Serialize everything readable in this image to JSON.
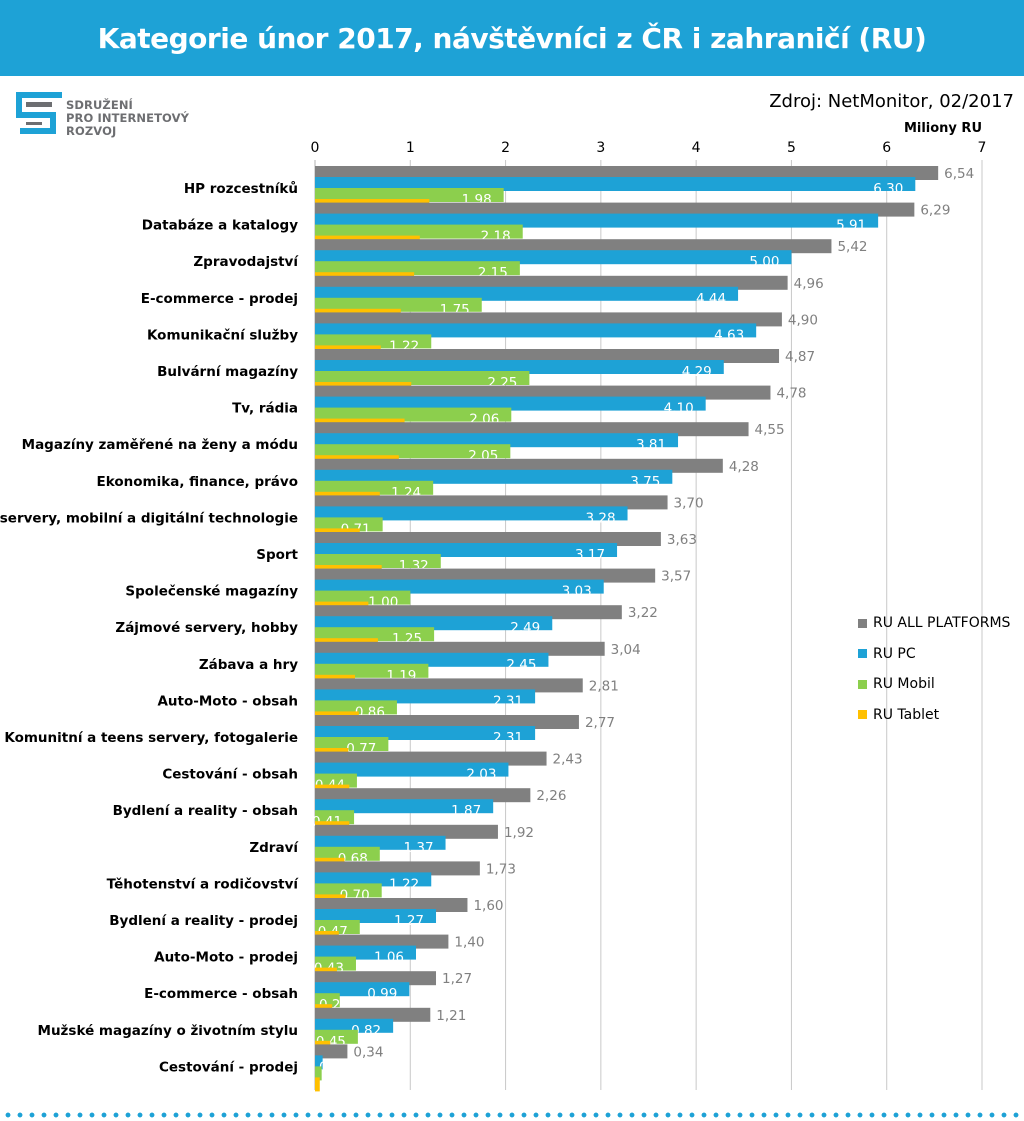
{
  "header": {
    "title": "Kategorie únor 2017, návštěvníci z ČR i zahraničí (RU)"
  },
  "logo": {
    "line1": "SDRUŽENÍ",
    "line2": "PRO INTERNETOVÝ",
    "line3": "ROZVOJ",
    "color": "#1ea2d6"
  },
  "source": "Zdroj: NetMonitor, 02/2017",
  "colors": {
    "all": "#808080",
    "pc": "#1ea2d6",
    "mobil": "#8ccf4d",
    "tablet": "#ffc000",
    "header": "#1ea2d6"
  },
  "chart_data": {
    "type": "bar",
    "orientation": "horizontal",
    "title": "Kategorie únor 2017, návštěvníci z ČR i zahraničí (RU)",
    "xlabel": "Miliony RU",
    "xlim": [
      0,
      7
    ],
    "ticks": [
      "0",
      "1",
      "2",
      "3",
      "4",
      "5",
      "6",
      "7"
    ],
    "legend_position": "right",
    "categories": [
      "HP rozcestníků",
      "Databáze a katalogy",
      "Zpravodajství",
      "E-commerce - prodej",
      "Komunikační služby",
      "Bulvární magazíny",
      "Tv, rádia",
      "Magazíny zaměřené na ženy a módu",
      "Ekonomika, finance, právo",
      "IT servery, mobilní a digitální technologie",
      "Sport",
      "Společenské magazíny",
      "Zájmové servery, hobby",
      "Zábava a hry",
      "Auto-Moto - obsah",
      "Komunitní a teens servery, fotogalerie",
      "Cestování - obsah",
      "Bydlení a reality - obsah",
      "Zdraví",
      "Těhotenství a rodičovství",
      "Bydlení a reality - prodej",
      "Auto-Moto - prodej",
      "E-commerce - obsah",
      "Mužské magazíny o životním stylu",
      "Cestování - prodej"
    ],
    "series": [
      {
        "name": "RU ALL PLATFORMS",
        "values": [
          6.54,
          6.29,
          5.42,
          4.96,
          4.9,
          4.87,
          4.78,
          4.55,
          4.28,
          3.7,
          3.63,
          3.57,
          3.22,
          3.04,
          2.81,
          2.77,
          2.43,
          2.26,
          1.92,
          1.73,
          1.6,
          1.4,
          1.27,
          1.21,
          0.34
        ],
        "labels": [
          "6,54",
          "6,29",
          "5,42",
          "4,96",
          "4,90",
          "4,87",
          "4,78",
          "4,55",
          "4,28",
          "3,70",
          "3,63",
          "3,57",
          "3,22",
          "3,04",
          "2,81",
          "2,77",
          "2,43",
          "2,26",
          "1,92",
          "1,73",
          "1,60",
          "1,40",
          "1,27",
          "1,21",
          "0,34"
        ]
      },
      {
        "name": "RU PC",
        "values": [
          6.3,
          5.91,
          5.0,
          4.44,
          4.63,
          4.29,
          4.1,
          3.81,
          3.75,
          3.28,
          3.17,
          3.03,
          2.49,
          2.45,
          2.31,
          2.31,
          2.03,
          1.87,
          1.37,
          1.22,
          1.27,
          1.06,
          0.99,
          0.82,
          0.08
        ],
        "labels": [
          "6,30",
          "5,91",
          "5,00",
          "4,44",
          "4,63",
          "4,29",
          "4,10",
          "3,81",
          "3,75",
          "3,28",
          "3,17",
          "3,03",
          "2,49",
          "2,45",
          "2,31",
          "2,31",
          "2,03",
          "1,87",
          "1,37",
          "1,22",
          "1,27",
          "1,06",
          "0,99",
          "0,82",
          "0,"
        ]
      },
      {
        "name": "RU Mobil",
        "values": [
          1.98,
          2.18,
          2.15,
          1.75,
          1.22,
          2.25,
          2.06,
          2.05,
          1.24,
          0.71,
          1.32,
          1.0,
          1.25,
          1.19,
          0.86,
          0.77,
          0.44,
          0.41,
          0.68,
          0.7,
          0.47,
          0.43,
          0.26,
          0.45,
          0.07
        ],
        "labels": [
          "1,98",
          "2,18",
          "2,15",
          "1,75",
          "1,22",
          "2,25",
          "2,06",
          "2,05",
          "1,24",
          "0,71",
          "1,32",
          "1,00",
          "1,25",
          "1,19",
          "0,86",
          "0,77",
          "0,44",
          "0,41",
          "0,68",
          "0,70",
          "0,47",
          "0,43",
          "0,26",
          "0,45",
          ""
        ]
      },
      {
        "name": "RU Tablet",
        "values": [
          1.2,
          1.1,
          1.04,
          0.9,
          0.69,
          1.01,
          0.94,
          0.88,
          0.68,
          0.47,
          0.7,
          0.56,
          0.66,
          0.42,
          0.46,
          0.35,
          0.36,
          0.36,
          0.31,
          0.32,
          0.25,
          0.23,
          0.18,
          0.16,
          0.05
        ],
        "labels": []
      }
    ]
  }
}
